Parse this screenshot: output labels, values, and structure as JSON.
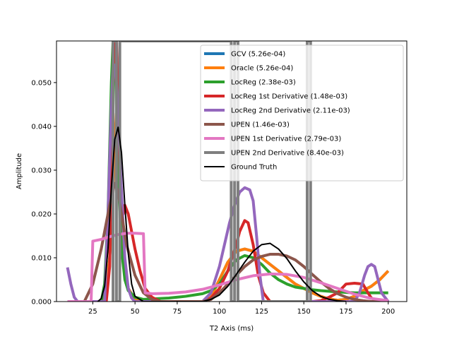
{
  "chart_data": {
    "type": "line",
    "xlabel": "T2 Axis (ms)",
    "ylabel": "Amplitude",
    "xlim": [
      3.5,
      211
    ],
    "ylim": [
      0,
      0.0595
    ],
    "xticks": [
      25,
      50,
      75,
      100,
      125,
      150,
      175,
      200
    ],
    "yticks": [
      0.0,
      0.01,
      0.02,
      0.03,
      0.04,
      0.05
    ],
    "ytick_labels": [
      "0.000",
      "0.010",
      "0.020",
      "0.030",
      "0.040",
      "0.050"
    ],
    "grid": false,
    "legend_position": "top-right",
    "series": [
      {
        "name": "GCV (5.26e-04)",
        "color": "#1f77b4",
        "width": 4,
        "x": [
          30,
          33,
          35,
          37,
          38,
          39,
          40,
          41,
          42,
          44,
          46,
          50,
          55,
          60,
          70,
          80,
          90,
          95,
          100,
          105,
          110,
          115,
          120,
          125,
          130,
          135,
          140,
          145,
          150,
          155,
          160,
          165,
          170,
          175,
          180,
          185,
          190,
          195,
          200
        ],
        "y": [
          0.0,
          0.003,
          0.01,
          0.025,
          0.036,
          0.042,
          0.04,
          0.03,
          0.018,
          0.008,
          0.003,
          0.0005,
          0.0,
          0.0,
          0.0,
          0.0,
          0.0,
          0.001,
          0.005,
          0.009,
          0.0115,
          0.012,
          0.0115,
          0.01,
          0.0085,
          0.007,
          0.0055,
          0.004,
          0.003,
          0.002,
          0.0012,
          0.0006,
          0.0003,
          0.0005,
          0.0012,
          0.0025,
          0.0035,
          0.005,
          0.007
        ]
      },
      {
        "name": "Oracle (5.26e-04)",
        "color": "#ff7f0e",
        "width": 4,
        "x": [
          30,
          33,
          35,
          37,
          38,
          39,
          40,
          41,
          42,
          44,
          46,
          50,
          55,
          60,
          70,
          80,
          90,
          95,
          100,
          105,
          110,
          115,
          120,
          125,
          130,
          135,
          140,
          145,
          150,
          155,
          160,
          165,
          170,
          175,
          180,
          185,
          190,
          195,
          200
        ],
        "y": [
          0.0,
          0.003,
          0.01,
          0.025,
          0.036,
          0.043,
          0.04,
          0.03,
          0.018,
          0.008,
          0.003,
          0.0005,
          0.0,
          0.0,
          0.0,
          0.0,
          0.0,
          0.001,
          0.005,
          0.009,
          0.0115,
          0.012,
          0.0115,
          0.01,
          0.0085,
          0.007,
          0.0055,
          0.004,
          0.003,
          0.002,
          0.0012,
          0.0006,
          0.0003,
          0.0005,
          0.0012,
          0.0025,
          0.0035,
          0.005,
          0.007
        ]
      },
      {
        "name": "LocReg (2.38e-03)",
        "color": "#2ca02c",
        "width": 4,
        "x": [
          30,
          32,
          34,
          35,
          36,
          37,
          38,
          39,
          40,
          41,
          42,
          44,
          46,
          50,
          55,
          60,
          70,
          80,
          90,
          95,
          100,
          105,
          110,
          115,
          120,
          125,
          130,
          135,
          140,
          145,
          150,
          155,
          160,
          170,
          180,
          190,
          200
        ],
        "y": [
          0.0,
          0.004,
          0.02,
          0.035,
          0.05,
          0.0595,
          0.0595,
          0.045,
          0.03,
          0.02,
          0.012,
          0.005,
          0.0025,
          0.001,
          0.0005,
          0.0006,
          0.0008,
          0.0012,
          0.0018,
          0.0025,
          0.004,
          0.007,
          0.0095,
          0.0105,
          0.01,
          0.0085,
          0.0065,
          0.005,
          0.004,
          0.0033,
          0.003,
          0.0027,
          0.0025,
          0.0022,
          0.002,
          0.002,
          0.002
        ]
      },
      {
        "name": "LocReg 1st Derivative (1.48e-03)",
        "color": "#d62728",
        "width": 4,
        "x": [
          33,
          35,
          36,
          37,
          38,
          39,
          40,
          41,
          42,
          43,
          44,
          46,
          48,
          50,
          53,
          56,
          60,
          65,
          90,
          95,
          100,
          105,
          110,
          112,
          115,
          117,
          120,
          123,
          126,
          130,
          135,
          140,
          145,
          150,
          155,
          160,
          165,
          170,
          175,
          180,
          185,
          188,
          190,
          195,
          200
        ],
        "y": [
          0.0,
          0.008,
          0.03,
          0.05,
          0.0595,
          0.0595,
          0.045,
          0.03,
          0.02,
          0.02,
          0.022,
          0.02,
          0.016,
          0.012,
          0.007,
          0.003,
          0.001,
          0.0,
          0.0,
          0.0008,
          0.003,
          0.007,
          0.013,
          0.016,
          0.0185,
          0.018,
          0.013,
          0.006,
          0.002,
          0.0,
          0.0,
          0.0,
          0.0,
          0.0,
          0.0,
          0.0002,
          0.001,
          0.002,
          0.004,
          0.0042,
          0.004,
          0.002,
          0.0008,
          0.0,
          0.0
        ]
      },
      {
        "name": "LocReg 2nd Derivative (2.11e-03)",
        "color": "#9467bd",
        "width": 4,
        "x": [
          10,
          12,
          14,
          16,
          32,
          34,
          36,
          37,
          38,
          39,
          40,
          42,
          44,
          46,
          48,
          50,
          60,
          90,
          95,
          100,
          103,
          106,
          109,
          112,
          115,
          118,
          120,
          122,
          124,
          126,
          130,
          140,
          150,
          160,
          170,
          180,
          183,
          186,
          188,
          190,
          192,
          194,
          196,
          200
        ],
        "y": [
          0.0078,
          0.004,
          0.001,
          0.0,
          0.0,
          0.02,
          0.045,
          0.0535,
          0.054,
          0.05,
          0.042,
          0.025,
          0.01,
          0.003,
          0.0008,
          0.0,
          0.0,
          0.0,
          0.002,
          0.008,
          0.013,
          0.018,
          0.022,
          0.025,
          0.026,
          0.0255,
          0.023,
          0.015,
          0.006,
          0.0,
          0.0,
          0.0,
          0.0,
          0.0,
          0.0,
          0.0,
          0.002,
          0.006,
          0.008,
          0.0085,
          0.008,
          0.005,
          0.002,
          0.0
        ]
      },
      {
        "name": "UPEN (1.46e-03)",
        "color": "#8c564b",
        "width": 4,
        "x": [
          10,
          20,
          25,
          30,
          35,
          38,
          40,
          42,
          45,
          50,
          55,
          60,
          65,
          70,
          80,
          90,
          95,
          100,
          105,
          110,
          115,
          120,
          125,
          130,
          135,
          140,
          145,
          150,
          155,
          160,
          165,
          170,
          175,
          180,
          185,
          190,
          195,
          200
        ],
        "y": [
          0.0,
          0.0,
          0.004,
          0.012,
          0.022,
          0.027,
          0.025,
          0.02,
          0.013,
          0.006,
          0.002,
          0.0005,
          0.0,
          0.0,
          0.0,
          0.0,
          0.0005,
          0.002,
          0.004,
          0.006,
          0.008,
          0.0095,
          0.0103,
          0.0108,
          0.0108,
          0.0104,
          0.0095,
          0.008,
          0.0062,
          0.0045,
          0.003,
          0.0018,
          0.001,
          0.0005,
          0.0002,
          0.0,
          0.0,
          0.0
        ]
      },
      {
        "name": "UPEN 1st Derivative (2.79e-03)",
        "color": "#e377c2",
        "width": 4,
        "x": [
          10,
          20,
          24,
          25,
          30,
          35,
          40,
          45,
          50,
          55,
          56,
          60,
          70,
          80,
          90,
          100,
          110,
          120,
          130,
          140,
          150,
          160,
          170,
          180,
          190,
          200
        ],
        "y": [
          0.0,
          0.0,
          0.0,
          0.0138,
          0.0142,
          0.0148,
          0.0153,
          0.0156,
          0.0156,
          0.0155,
          0.002,
          0.0018,
          0.0019,
          0.0022,
          0.0028,
          0.0038,
          0.005,
          0.0059,
          0.0063,
          0.0062,
          0.0055,
          0.0043,
          0.003,
          0.0017,
          0.0007,
          0.0002
        ]
      },
      {
        "name": "UPEN 2nd Derivative (8.40e-03)",
        "color": "#7f7f7f",
        "width": 4,
        "x": [
          37,
          37,
          39,
          39,
          41,
          41,
          107,
          107,
          109,
          109,
          111,
          111,
          152,
          152,
          154,
          154
        ],
        "y": [
          0.0,
          0.0595,
          0.0595,
          0.0,
          0.0,
          0.0595,
          0.0595,
          0.0,
          0.0,
          0.0595,
          0.0595,
          0.0,
          0.0,
          0.0595,
          0.0595,
          0.0
        ]
      },
      {
        "name": "Ground Truth",
        "color": "#000000",
        "width": 2,
        "x": [
          28,
          30,
          32,
          34,
          36,
          38,
          40,
          42,
          44,
          46,
          48,
          50,
          55,
          60,
          90,
          95,
          100,
          105,
          110,
          115,
          120,
          125,
          130,
          135,
          140,
          145,
          150,
          155,
          160,
          165,
          170,
          175
        ],
        "y": [
          0.0,
          0.0007,
          0.0035,
          0.012,
          0.026,
          0.037,
          0.0398,
          0.034,
          0.022,
          0.011,
          0.004,
          0.0012,
          0.0,
          0.0,
          0.0,
          0.0005,
          0.0015,
          0.0035,
          0.0062,
          0.009,
          0.0115,
          0.013,
          0.0133,
          0.012,
          0.0098,
          0.007,
          0.0045,
          0.0025,
          0.0012,
          0.0005,
          0.0002,
          0.0
        ]
      }
    ]
  }
}
